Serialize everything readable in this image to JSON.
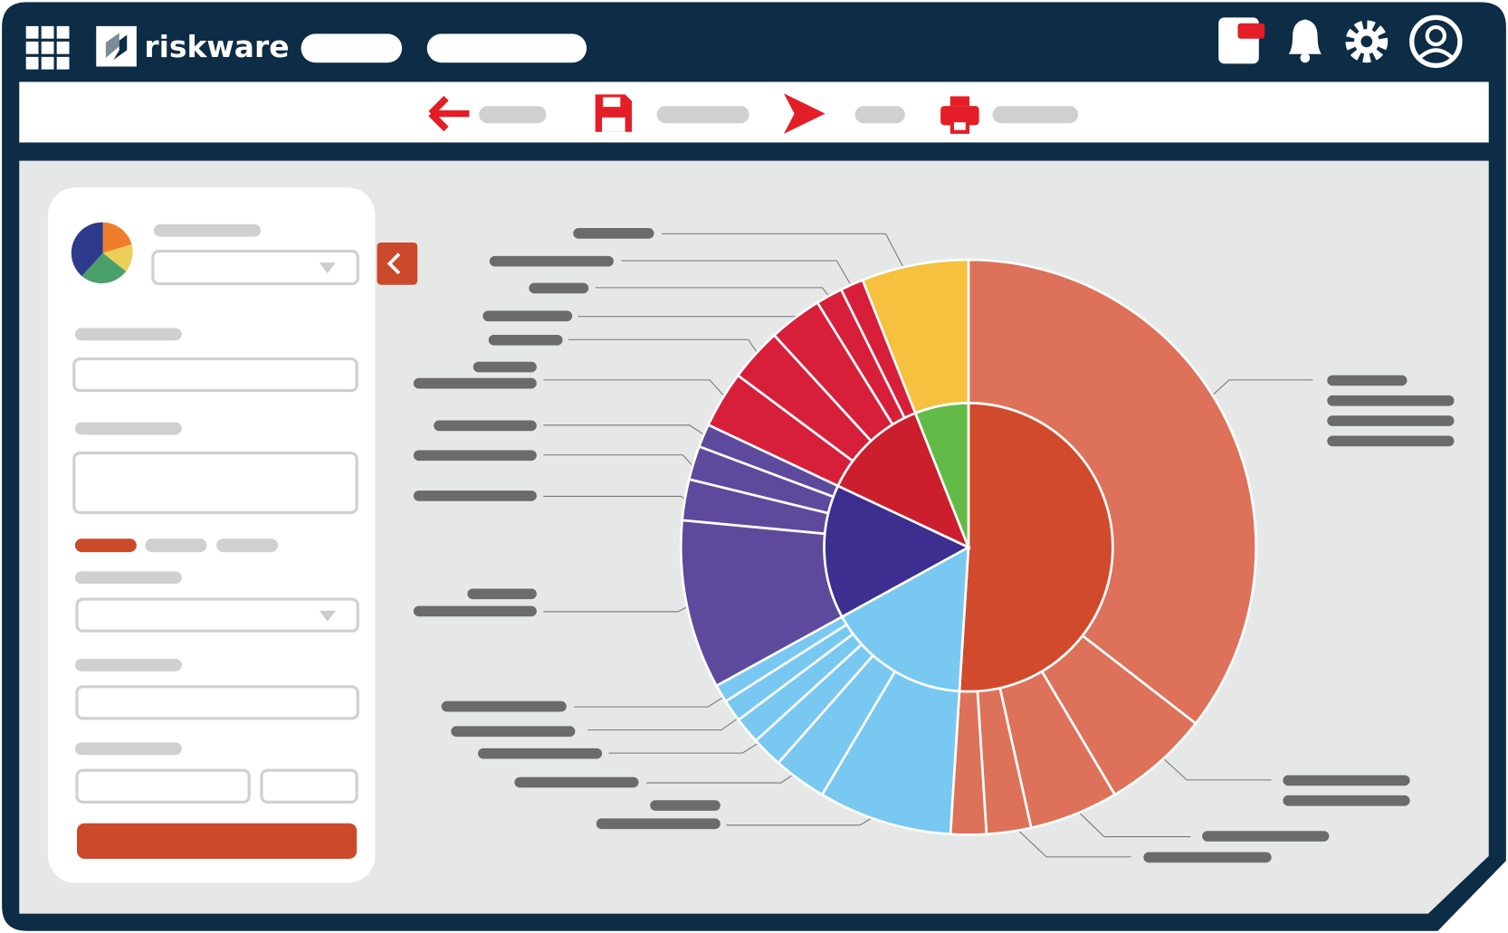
{
  "app": {
    "brand": "riskware"
  },
  "chart_data": {
    "type": "sunburst",
    "series": [
      {
        "value": 51,
        "color": "#d24a2c",
        "child_color": "#de7159",
        "children": [
          35.5,
          6,
          5,
          2.5,
          2
        ]
      },
      {
        "value": 16,
        "color": "#78c8f2",
        "child_color": "#78c8f2",
        "children": [
          7.5,
          3,
          1.75,
          1.5,
          1.25,
          1
        ]
      },
      {
        "value": 15,
        "color": "#3c2f8f",
        "child_color": "#5d4a9d",
        "children": [
          9.5,
          2.3,
          1.9,
          1.3
        ]
      },
      {
        "value": 12,
        "color": "#cc1f2e",
        "child_color": "#d81f3a",
        "children": [
          3.2,
          3,
          3,
          1.5,
          1.3
        ]
      },
      {
        "value": 6,
        "color": "#62bb46",
        "child_color": "#f5c13e",
        "children": [
          6
        ]
      }
    ]
  }
}
